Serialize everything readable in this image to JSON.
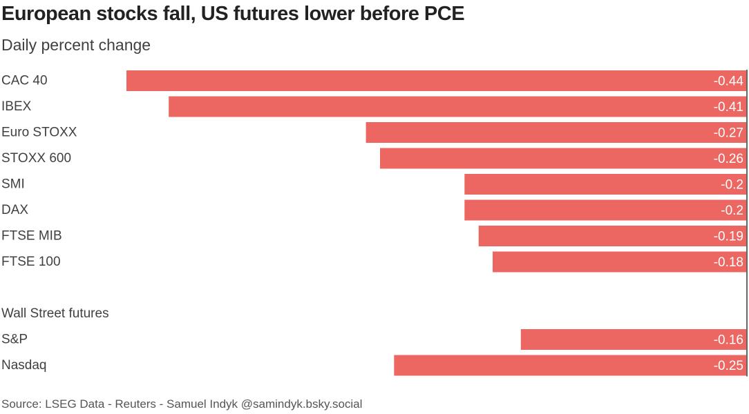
{
  "chart_data": {
    "type": "bar",
    "orientation": "horizontal",
    "title": "European stocks fall, US futures lower before PCE",
    "subtitle": "Daily percent change",
    "source": "Source: LSEG Data - Reuters - Samuel Indyk @samindyk.bsky.social",
    "group_label": "Wall Street futures",
    "xlim": [
      -0.44,
      0
    ],
    "gridlines": false,
    "rows": [
      {
        "label": "CAC 40",
        "value": -0.44,
        "value_label": "-0.44"
      },
      {
        "label": "IBEX",
        "value": -0.41,
        "value_label": "-0.41"
      },
      {
        "label": "Euro STOXX",
        "value": -0.27,
        "value_label": "-0.27"
      },
      {
        "label": "STOXX 600",
        "value": -0.26,
        "value_label": "-0.26"
      },
      {
        "label": "SMI",
        "value": -0.2,
        "value_label": "-0.2"
      },
      {
        "label": "DAX",
        "value": -0.2,
        "value_label": "-0.2"
      },
      {
        "label": "FTSE MIB",
        "value": -0.19,
        "value_label": "-0.19"
      },
      {
        "label": "FTSE 100",
        "value": -0.18,
        "value_label": "-0.18"
      },
      {
        "label": "S&P",
        "value": -0.16,
        "value_label": "-0.16"
      },
      {
        "label": "Nasdaq",
        "value": -0.25,
        "value_label": "-0.25"
      }
    ],
    "colors": {
      "bar": "#ec6761",
      "bar_label": "#ffffff",
      "zero_line": "#333333",
      "category_label": "#404040"
    }
  }
}
